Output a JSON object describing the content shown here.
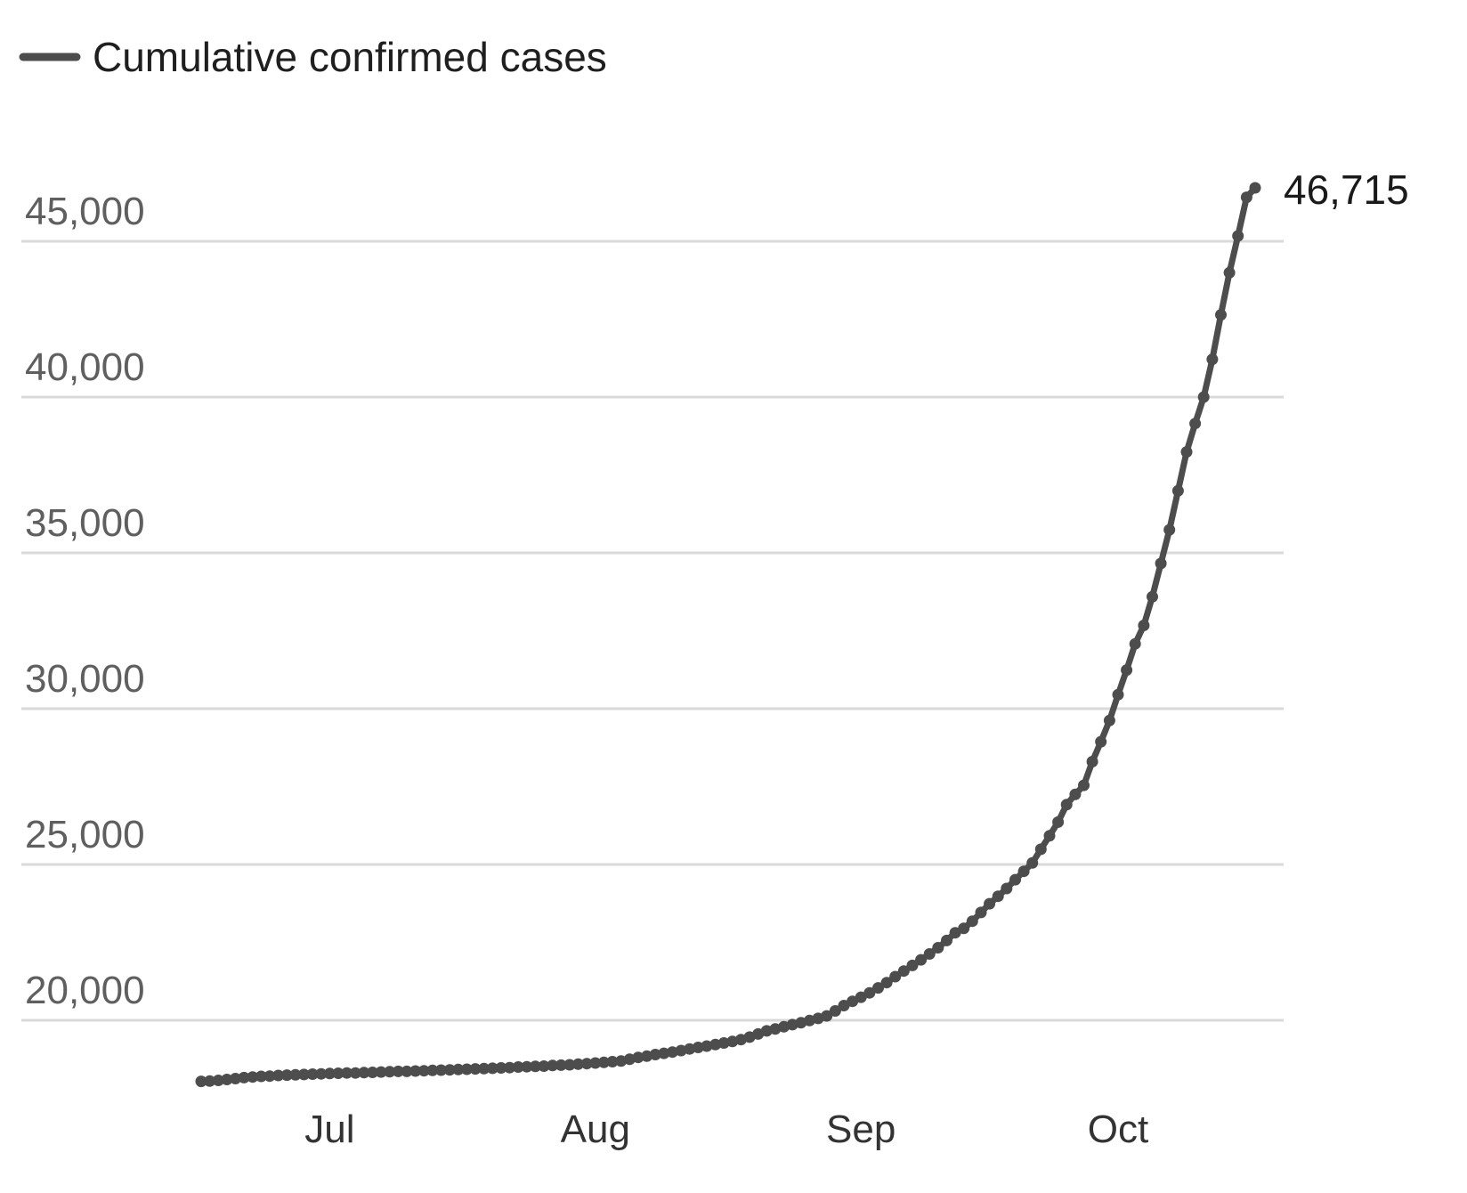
{
  "chart_data": {
    "type": "line",
    "legend": {
      "position": "top-left",
      "label": "Cumulative confirmed cases"
    },
    "ylim": [
      16000,
      47000
    ],
    "yticks": [
      20000,
      25000,
      30000,
      35000,
      40000,
      45000
    ],
    "ytick_labels": [
      "20,000",
      "25,000",
      "30,000",
      "35,000",
      "40,000",
      "45,000"
    ],
    "grid": true,
    "xticks": [
      {
        "date": "2020-07-01",
        "label": "Jul"
      },
      {
        "date": "2020-08-01",
        "label": "Aug"
      },
      {
        "date": "2020-09-01",
        "label": "Sep"
      },
      {
        "date": "2020-10-01",
        "label": "Oct"
      }
    ],
    "series": [
      {
        "name": "Cumulative confirmed cases",
        "color": "#4d4d4d",
        "end_label": "46,715",
        "points": [
          [
            "2020-06-16",
            18040
          ],
          [
            "2020-06-17",
            18050
          ],
          [
            "2020-06-18",
            18070
          ],
          [
            "2020-06-19",
            18100
          ],
          [
            "2020-06-20",
            18130
          ],
          [
            "2020-06-21",
            18160
          ],
          [
            "2020-06-22",
            18180
          ],
          [
            "2020-06-23",
            18200
          ],
          [
            "2020-06-24",
            18210
          ],
          [
            "2020-06-25",
            18230
          ],
          [
            "2020-06-26",
            18240
          ],
          [
            "2020-06-27",
            18250
          ],
          [
            "2020-06-28",
            18260
          ],
          [
            "2020-06-29",
            18270
          ],
          [
            "2020-06-30",
            18280
          ],
          [
            "2020-07-01",
            18290
          ],
          [
            "2020-07-02",
            18300
          ],
          [
            "2020-07-03",
            18310
          ],
          [
            "2020-07-04",
            18310
          ],
          [
            "2020-07-05",
            18320
          ],
          [
            "2020-07-06",
            18330
          ],
          [
            "2020-07-07",
            18340
          ],
          [
            "2020-07-08",
            18350
          ],
          [
            "2020-07-09",
            18360
          ],
          [
            "2020-07-10",
            18360
          ],
          [
            "2020-07-11",
            18370
          ],
          [
            "2020-07-12",
            18380
          ],
          [
            "2020-07-13",
            18390
          ],
          [
            "2020-07-14",
            18400
          ],
          [
            "2020-07-15",
            18410
          ],
          [
            "2020-07-16",
            18420
          ],
          [
            "2020-07-17",
            18430
          ],
          [
            "2020-07-18",
            18440
          ],
          [
            "2020-07-19",
            18450
          ],
          [
            "2020-07-20",
            18460
          ],
          [
            "2020-07-21",
            18470
          ],
          [
            "2020-07-22",
            18480
          ],
          [
            "2020-07-23",
            18500
          ],
          [
            "2020-07-24",
            18510
          ],
          [
            "2020-07-25",
            18520
          ],
          [
            "2020-07-26",
            18530
          ],
          [
            "2020-07-27",
            18550
          ],
          [
            "2020-07-28",
            18560
          ],
          [
            "2020-07-29",
            18570
          ],
          [
            "2020-07-30",
            18590
          ],
          [
            "2020-07-31",
            18610
          ],
          [
            "2020-08-01",
            18630
          ],
          [
            "2020-08-02",
            18650
          ],
          [
            "2020-08-03",
            18670
          ],
          [
            "2020-08-04",
            18690
          ],
          [
            "2020-08-05",
            18750
          ],
          [
            "2020-08-06",
            18810
          ],
          [
            "2020-08-07",
            18850
          ],
          [
            "2020-08-08",
            18900
          ],
          [
            "2020-08-09",
            18940
          ],
          [
            "2020-08-10",
            18980
          ],
          [
            "2020-08-11",
            19030
          ],
          [
            "2020-08-12",
            19080
          ],
          [
            "2020-08-13",
            19130
          ],
          [
            "2020-08-14",
            19170
          ],
          [
            "2020-08-15",
            19220
          ],
          [
            "2020-08-16",
            19270
          ],
          [
            "2020-08-17",
            19320
          ],
          [
            "2020-08-18",
            19380
          ],
          [
            "2020-08-19",
            19460
          ],
          [
            "2020-08-20",
            19560
          ],
          [
            "2020-08-21",
            19660
          ],
          [
            "2020-08-22",
            19720
          ],
          [
            "2020-08-23",
            19790
          ],
          [
            "2020-08-24",
            19860
          ],
          [
            "2020-08-25",
            19920
          ],
          [
            "2020-08-26",
            19990
          ],
          [
            "2020-08-27",
            20060
          ],
          [
            "2020-08-28",
            20140
          ],
          [
            "2020-08-29",
            20300
          ],
          [
            "2020-08-30",
            20470
          ],
          [
            "2020-08-31",
            20610
          ],
          [
            "2020-09-01",
            20740
          ],
          [
            "2020-09-02",
            20880
          ],
          [
            "2020-09-03",
            21040
          ],
          [
            "2020-09-04",
            21210
          ],
          [
            "2020-09-05",
            21400
          ],
          [
            "2020-09-06",
            21580
          ],
          [
            "2020-09-07",
            21760
          ],
          [
            "2020-09-08",
            21940
          ],
          [
            "2020-09-09",
            22130
          ],
          [
            "2020-09-10",
            22330
          ],
          [
            "2020-09-11",
            22560
          ],
          [
            "2020-09-12",
            22810
          ],
          [
            "2020-09-13",
            22950
          ],
          [
            "2020-09-14",
            23180
          ],
          [
            "2020-09-15",
            23460
          ],
          [
            "2020-09-16",
            23740
          ],
          [
            "2020-09-17",
            23980
          ],
          [
            "2020-09-18",
            24230
          ],
          [
            "2020-09-19",
            24510
          ],
          [
            "2020-09-20",
            24780
          ],
          [
            "2020-09-21",
            25050
          ],
          [
            "2020-09-22",
            25490
          ],
          [
            "2020-09-23",
            25920
          ],
          [
            "2020-09-24",
            26360
          ],
          [
            "2020-09-25",
            26920
          ],
          [
            "2020-09-26",
            27250
          ],
          [
            "2020-09-27",
            27540
          ],
          [
            "2020-09-28",
            28300
          ],
          [
            "2020-09-29",
            28940
          ],
          [
            "2020-09-30",
            29620
          ],
          [
            "2020-10-01",
            30450
          ],
          [
            "2020-10-02",
            31240
          ],
          [
            "2020-10-03",
            32080
          ],
          [
            "2020-10-04",
            32670
          ],
          [
            "2020-10-05",
            33590
          ],
          [
            "2020-10-06",
            34660
          ],
          [
            "2020-10-07",
            35740
          ],
          [
            "2020-10-08",
            36990
          ],
          [
            "2020-10-09",
            38240
          ],
          [
            "2020-10-10",
            39150
          ],
          [
            "2020-10-11",
            40000
          ],
          [
            "2020-10-12",
            41210
          ],
          [
            "2020-10-13",
            42640
          ],
          [
            "2020-10-14",
            43990
          ],
          [
            "2020-10-15",
            45170
          ],
          [
            "2020-10-16",
            46410
          ],
          [
            "2020-10-17",
            46715
          ]
        ]
      }
    ]
  }
}
